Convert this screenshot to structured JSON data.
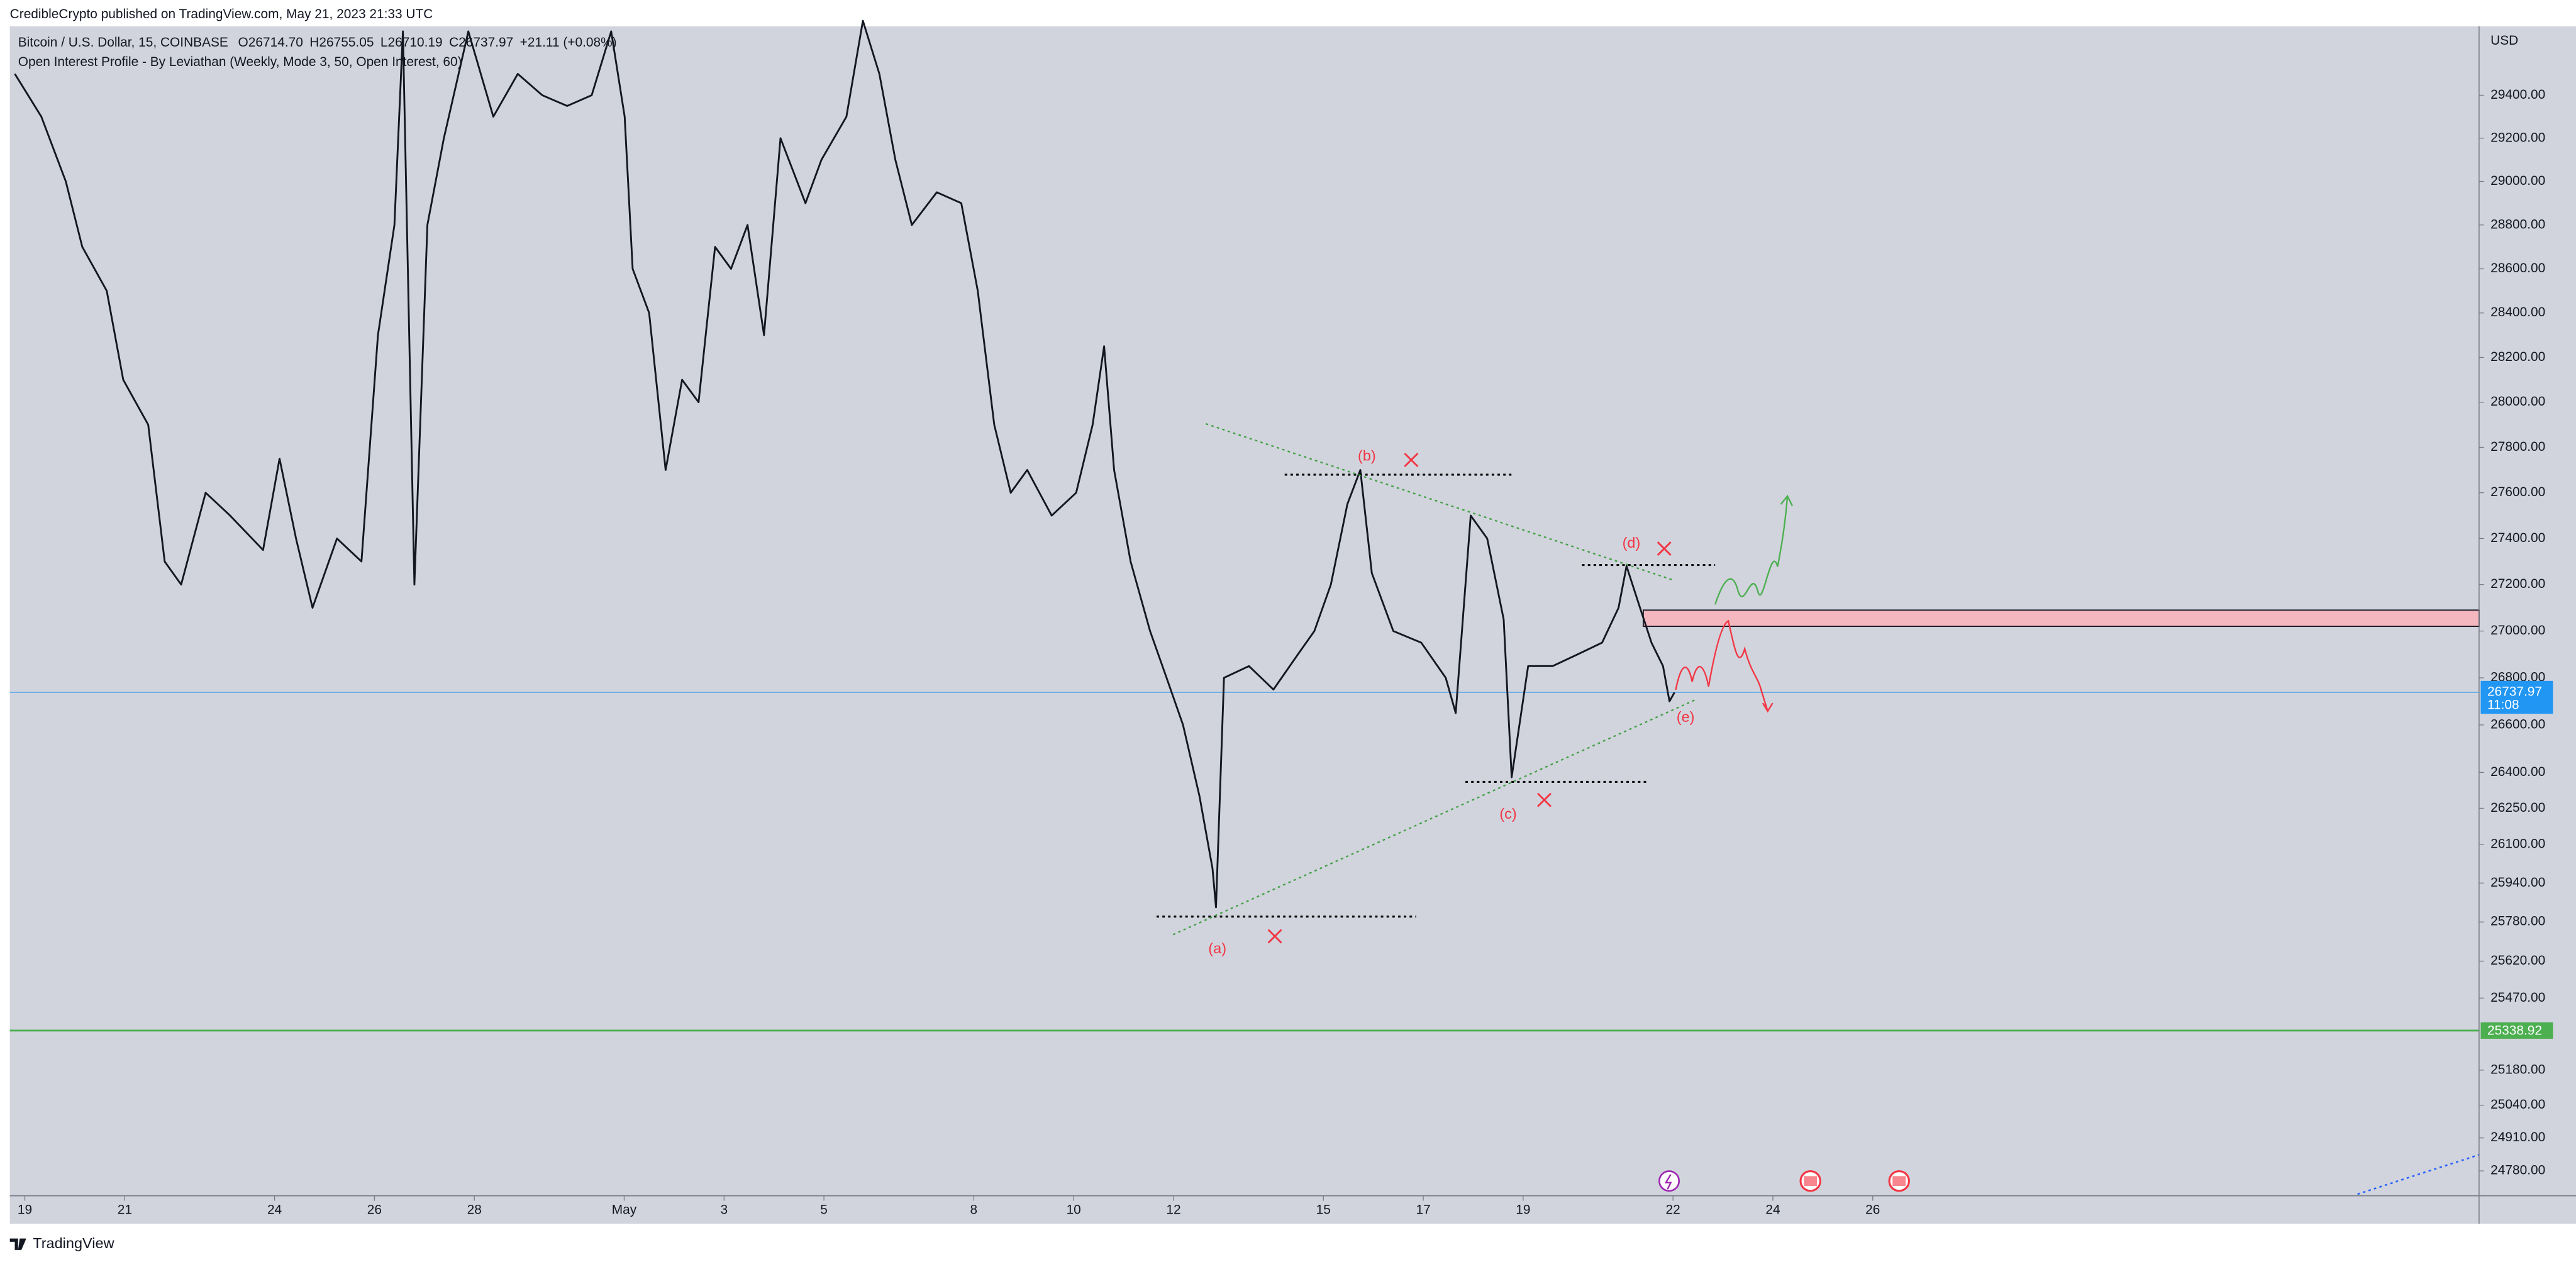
{
  "header": {
    "publisher": "CredibleCrypto published on TradingView.com, May 21, 2023 21:33 UTC"
  },
  "chart_data": {
    "type": "line",
    "title": "Bitcoin / U.S. Dollar, 15, COINBASE",
    "ohlc": [
      {
        "letter": "O",
        "value": "26714.70"
      },
      {
        "letter": "H",
        "value": "26755.05"
      },
      {
        "letter": "L",
        "value": "26710.19"
      },
      {
        "letter": "C",
        "value": "26737.97"
      }
    ],
    "change": "+21.11 (+0.08%)",
    "indicator": "Open Interest Profile - By Leviathan (Weekly, Mode 3, 50, Open Interest, 60)",
    "currency": "USD",
    "x": [
      -0.2,
      0.33,
      0.82,
      1.15,
      1.64,
      1.97,
      2.47,
      2.8,
      3.13,
      3.62,
      4.11,
      4.77,
      5.1,
      5.43,
      5.76,
      6.25,
      6.74,
      7.07,
      7.4,
      7.57,
      7.8,
      8.06,
      8.39,
      8.88,
      9.38,
      9.87,
      10.36,
      10.86,
      11.35,
      11.74,
      12.01,
      12.17,
      12.5,
      12.83,
      13.16,
      13.49,
      13.82,
      14.14,
      14.47,
      14.8,
      15.13,
      15.63,
      15.95,
      16.45,
      16.78,
      17.11,
      17.43,
      17.76,
      18.26,
      18.75,
      19.08,
      19.41,
      19.74,
      20.07,
      20.56,
      21.05,
      21.38,
      21.61,
      21.81,
      22.14,
      22.53,
      22.86,
      23.19,
      23.52,
      23.78,
      23.85,
      24.01,
      24.51,
      25.0,
      25.49,
      25.82,
      26.15,
      26.48,
      26.74,
      26.97,
      27.4,
      27.96,
      28.45,
      28.65,
      28.95,
      29.28,
      29.61,
      29.77,
      30.1,
      30.59,
      31.09,
      31.58,
      31.91,
      32.07,
      32.34,
      32.57,
      32.8,
      32.93,
      33.03
    ],
    "values": [
      29500,
      29300,
      29000,
      28700,
      28500,
      28100,
      27900,
      27300,
      27200,
      27600,
      27500,
      27350,
      27750,
      27400,
      27100,
      27400,
      27300,
      28300,
      28800,
      29700,
      27200,
      28800,
      29200,
      29700,
      29300,
      29500,
      29400,
      29350,
      29400,
      29700,
      29300,
      28600,
      28400,
      27700,
      28100,
      28000,
      28700,
      28600,
      28800,
      28300,
      29200,
      28900,
      29100,
      29300,
      29750,
      29500,
      29100,
      28800,
      28950,
      28900,
      28500,
      27900,
      27600,
      27700,
      27500,
      27600,
      27900,
      28250,
      27700,
      27300,
      27000,
      26800,
      26600,
      26300,
      26000,
      25840,
      26800,
      26850,
      26750,
      26900,
      27000,
      27200,
      27550,
      27700,
      27250,
      27000,
      26950,
      26800,
      26650,
      27500,
      27400,
      27050,
      26380,
      26850,
      26850,
      26900,
      26950,
      27100,
      27280,
      27100,
      26950,
      26850,
      26700,
      26737.97
    ],
    "color": "#131722",
    "xlim": [
      -0.3,
      49.14
    ],
    "xticks": [
      {
        "value": 0,
        "label": "19"
      },
      {
        "value": 2,
        "label": "21"
      },
      {
        "value": 5,
        "label": "24"
      },
      {
        "value": 7,
        "label": "26"
      },
      {
        "value": 9,
        "label": "28"
      },
      {
        "value": 12,
        "label": "May"
      },
      {
        "value": 14,
        "label": "3"
      },
      {
        "value": 16,
        "label": "5"
      },
      {
        "value": 19,
        "label": "8"
      },
      {
        "value": 21,
        "label": "10"
      },
      {
        "value": 23,
        "label": "12"
      },
      {
        "value": 26,
        "label": "15"
      },
      {
        "value": 28,
        "label": "17"
      },
      {
        "value": 30,
        "label": "19"
      },
      {
        "value": 33,
        "label": "22"
      },
      {
        "value": 35,
        "label": "24"
      },
      {
        "value": 37,
        "label": "26"
      }
    ],
    "ylim": [
      24682,
      29724
    ],
    "log_scale": true,
    "yticks": [
      {
        "value": 29400,
        "label": "29400.00"
      },
      {
        "value": 29200,
        "label": "29200.00"
      },
      {
        "value": 29000,
        "label": "29000.00"
      },
      {
        "value": 28800,
        "label": "28800.00"
      },
      {
        "value": 28600,
        "label": "28600.00"
      },
      {
        "value": 28400,
        "label": "28400.00"
      },
      {
        "value": 28200,
        "label": "28200.00"
      },
      {
        "value": 28000,
        "label": "28000.00"
      },
      {
        "value": 27800,
        "label": "27800.00"
      },
      {
        "value": 27600,
        "label": "27600.00"
      },
      {
        "value": 27400,
        "label": "27400.00"
      },
      {
        "value": 27200,
        "label": "27200.00"
      },
      {
        "value": 27000,
        "label": "27000.00"
      },
      {
        "value": 26800,
        "label": "26800.00"
      },
      {
        "value": 26600,
        "label": "26600.00"
      },
      {
        "value": 26400,
        "label": "26400.00"
      },
      {
        "value": 26250,
        "label": "26250.00"
      },
      {
        "value": 26100,
        "label": "26100.00"
      },
      {
        "value": 25940,
        "label": "25940.00"
      },
      {
        "value": 25780,
        "label": "25780.00"
      },
      {
        "value": 25620,
        "label": "25620.00"
      },
      {
        "value": 25470,
        "label": "25470.00"
      },
      {
        "value": 25180,
        "label": "25180.00"
      },
      {
        "value": 25040,
        "label": "25040.00"
      },
      {
        "value": 24910,
        "label": "24910.00"
      },
      {
        "value": 24780,
        "label": "24780.00"
      }
    ],
    "last_price": {
      "value": 26737.97,
      "label": "26737.97",
      "color": "#2196f3"
    },
    "countdown": "11:08",
    "level": {
      "value": 25338.92,
      "label": "25338.92",
      "color": "#4caf50"
    },
    "zone": [
      27090,
      27020
    ],
    "annotations": [
      "(a)",
      "(b)",
      "(c)",
      "(d)",
      "(e)"
    ]
  },
  "footer": {
    "brand": "TradingView"
  }
}
